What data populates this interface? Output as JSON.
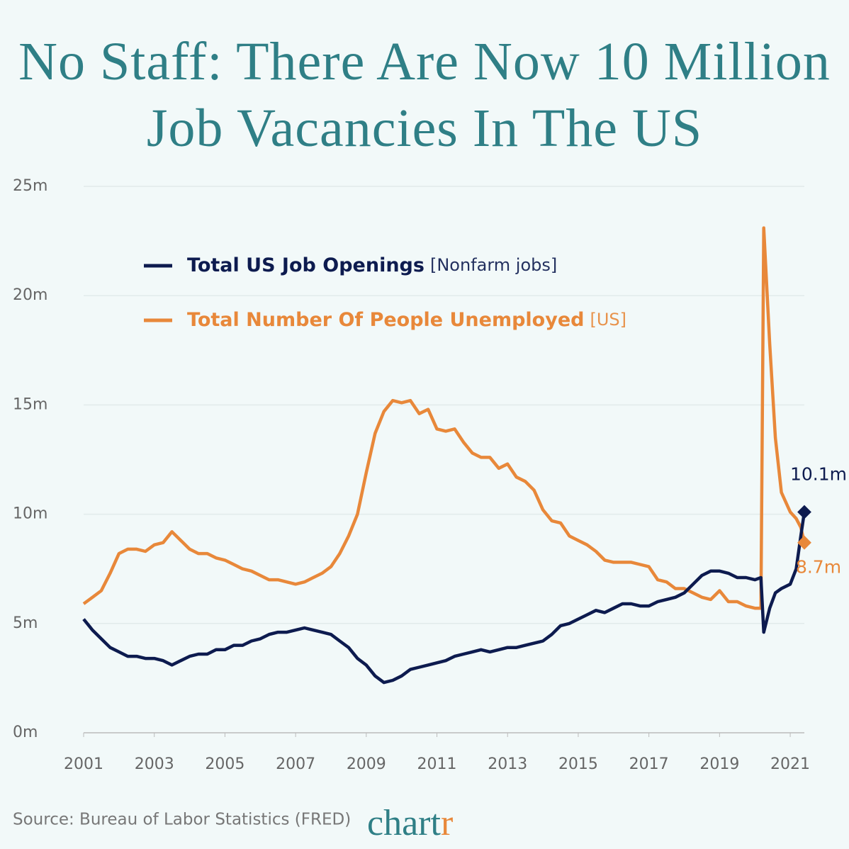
{
  "chart_data": {
    "type": "line",
    "title": "No Staff: There Are Now 10 Million Job Vacancies In The US",
    "source": "Source: Bureau of Labor Statistics (FRED)",
    "brand": [
      "chart",
      "r"
    ],
    "x": [
      2001,
      2001.25,
      2001.5,
      2001.75,
      2002,
      2002.25,
      2002.5,
      2002.75,
      2003,
      2003.25,
      2003.5,
      2003.75,
      2004,
      2004.25,
      2004.5,
      2004.75,
      2005,
      2005.25,
      2005.5,
      2005.75,
      2006,
      2006.25,
      2006.5,
      2006.75,
      2007,
      2007.25,
      2007.5,
      2007.75,
      2008,
      2008.25,
      2008.5,
      2008.75,
      2009,
      2009.25,
      2009.5,
      2009.75,
      2010,
      2010.25,
      2010.5,
      2010.75,
      2011,
      2011.25,
      2011.5,
      2011.75,
      2012,
      2012.25,
      2012.5,
      2012.75,
      2013,
      2013.25,
      2013.5,
      2013.75,
      2014,
      2014.25,
      2014.5,
      2014.75,
      2015,
      2015.25,
      2015.5,
      2015.75,
      2016,
      2016.25,
      2016.5,
      2016.75,
      2017,
      2017.25,
      2017.5,
      2017.75,
      2018,
      2018.25,
      2018.5,
      2018.75,
      2019,
      2019.25,
      2019.5,
      2019.75,
      2020,
      2020.17,
      2020.25,
      2020.42,
      2020.58,
      2020.75,
      2021,
      2021.17,
      2021.3,
      2021.4
    ],
    "series": [
      {
        "name": "Total US Job Openings",
        "detail": "[Nonfarm jobs]",
        "color": "#0d1b4f",
        "values": [
          5.2,
          4.7,
          4.3,
          3.9,
          3.7,
          3.5,
          3.5,
          3.4,
          3.4,
          3.3,
          3.1,
          3.3,
          3.5,
          3.6,
          3.6,
          3.8,
          3.8,
          4.0,
          4.0,
          4.2,
          4.3,
          4.5,
          4.6,
          4.6,
          4.7,
          4.8,
          4.7,
          4.6,
          4.5,
          4.2,
          3.9,
          3.4,
          3.1,
          2.6,
          2.3,
          2.4,
          2.6,
          2.9,
          3.0,
          3.1,
          3.2,
          3.3,
          3.5,
          3.6,
          3.7,
          3.8,
          3.7,
          3.8,
          3.9,
          3.9,
          4.0,
          4.1,
          4.2,
          4.5,
          4.9,
          5.0,
          5.2,
          5.4,
          5.6,
          5.5,
          5.7,
          5.9,
          5.9,
          5.8,
          5.8,
          6.0,
          6.1,
          6.2,
          6.4,
          6.8,
          7.2,
          7.4,
          7.4,
          7.3,
          7.1,
          7.1,
          7.0,
          7.1,
          4.6,
          5.7,
          6.4,
          6.6,
          6.8,
          7.5,
          9.0,
          10.1
        ]
      },
      {
        "name": "Total Number Of People Unemployed",
        "detail": "[US]",
        "color": "#e8883a",
        "values": [
          5.9,
          6.2,
          6.5,
          7.3,
          8.2,
          8.4,
          8.4,
          8.3,
          8.6,
          8.7,
          9.2,
          8.8,
          8.4,
          8.2,
          8.2,
          8.0,
          7.9,
          7.7,
          7.5,
          7.4,
          7.2,
          7.0,
          7.0,
          6.9,
          6.8,
          6.9,
          7.1,
          7.3,
          7.6,
          8.2,
          9.0,
          10.0,
          11.9,
          13.7,
          14.7,
          15.2,
          15.1,
          15.2,
          14.6,
          14.8,
          13.9,
          13.8,
          13.9,
          13.3,
          12.8,
          12.6,
          12.6,
          12.1,
          12.3,
          11.7,
          11.5,
          11.1,
          10.2,
          9.7,
          9.6,
          9.0,
          8.8,
          8.6,
          8.3,
          7.9,
          7.8,
          7.8,
          7.8,
          7.7,
          7.6,
          7.0,
          6.9,
          6.6,
          6.6,
          6.4,
          6.2,
          6.1,
          6.5,
          6.0,
          6.0,
          5.8,
          5.7,
          5.7,
          23.1,
          17.8,
          13.5,
          11.0,
          10.1,
          9.8,
          9.4,
          8.7
        ]
      }
    ],
    "annotations": [
      {
        "text": "10.1m",
        "x": 2021.4,
        "y": 10.1,
        "color": "#0d1b4f",
        "position": "above"
      },
      {
        "text": "8.7m",
        "x": 2021.4,
        "y": 8.7,
        "color": "#e8883a",
        "position": "below"
      }
    ],
    "xlim": [
      2001,
      2021.4
    ],
    "xticks": [
      2001,
      2003,
      2005,
      2007,
      2009,
      2011,
      2013,
      2015,
      2017,
      2019,
      2021
    ],
    "ylim": [
      0,
      25
    ],
    "yticks": [
      {
        "value": 0,
        "label": "0m"
      },
      {
        "value": 5,
        "label": "5m"
      },
      {
        "value": 10,
        "label": "10m"
      },
      {
        "value": 15,
        "label": "15m"
      },
      {
        "value": 20,
        "label": "20m"
      },
      {
        "value": 25,
        "label": "25m"
      }
    ],
    "grid": true,
    "legend_position": "upper left"
  }
}
